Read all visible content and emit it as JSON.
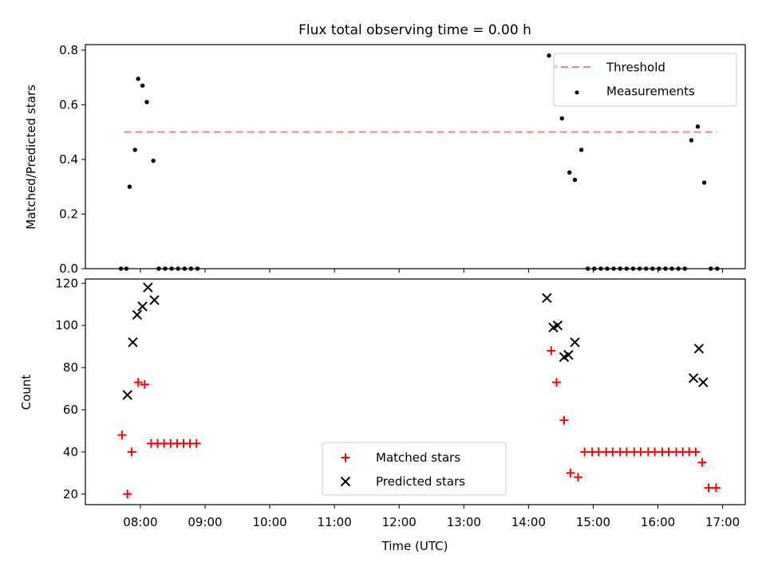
{
  "title": "Flux total observing time = 0.00 h",
  "colors": {
    "threshold": "#ff8080",
    "measurement": "#000000",
    "matched": "#ff0000",
    "predicted": "#000000"
  },
  "chart_data": [
    {
      "type": "scatter",
      "ylabel": "Matched/Predicted stars",
      "ylim": [
        0,
        0.82
      ],
      "xlim": [
        "07:09",
        "17:21"
      ],
      "yticks": [
        0.0,
        0.2,
        0.4,
        0.6,
        0.8
      ],
      "ytick_labels": [
        "0.0",
        "0.2",
        "0.4",
        "0.6",
        "0.8"
      ],
      "legend": {
        "position": "top-right",
        "threshold_label": "Threshold",
        "measurements_label": "Measurements"
      },
      "threshold": {
        "value": 0.5,
        "x": [
          "07:45",
          "16:55"
        ]
      },
      "series": [
        {
          "name": "Measurements",
          "x": [
            "07:42",
            "07:47",
            "07:50",
            "07:55",
            "07:58",
            "08:02",
            "08:06",
            "08:12",
            "08:17",
            "08:23",
            "08:29",
            "08:35",
            "08:41",
            "08:47",
            "08:53",
            "14:19",
            "14:25",
            "14:31",
            "14:38",
            "14:43",
            "14:49",
            "14:55",
            "15:01",
            "15:07",
            "15:13",
            "15:19",
            "15:25",
            "15:31",
            "15:37",
            "15:43",
            "15:49",
            "15:55",
            "16:01",
            "16:07",
            "16:13",
            "16:19",
            "16:25",
            "16:31",
            "16:37",
            "16:43",
            "16:49",
            "16:55"
          ],
          "values": [
            0,
            0,
            0.3,
            0.435,
            0.695,
            0.67,
            0.61,
            0.395,
            0,
            0,
            0,
            0,
            0,
            0,
            0,
            0.78,
            0.74,
            0.55,
            0.352,
            0.325,
            0.435,
            0,
            0,
            0,
            0,
            0,
            0,
            0,
            0,
            0,
            0,
            0,
            0,
            0,
            0,
            0,
            0,
            0.47,
            0.52,
            0.315,
            0,
            0
          ]
        }
      ]
    },
    {
      "type": "scatter",
      "xlabel": "Time (UTC)",
      "ylabel": "Count",
      "ylim": [
        15,
        122
      ],
      "xlim": [
        "07:09",
        "17:21"
      ],
      "yticks": [
        20,
        40,
        60,
        80,
        100,
        120
      ],
      "ytick_labels": [
        "20",
        "40",
        "60",
        "80",
        "100",
        "120"
      ],
      "xticks": [
        "08:00",
        "09:00",
        "10:00",
        "11:00",
        "12:00",
        "13:00",
        "14:00",
        "15:00",
        "16:00",
        "17:00"
      ],
      "legend": {
        "position": "bottom-center"
      },
      "series": [
        {
          "name": "Matched stars",
          "x": [
            "07:43",
            "07:48",
            "07:52",
            "07:58",
            "08:04",
            "08:10",
            "08:16",
            "08:22",
            "08:28",
            "08:34",
            "08:40",
            "08:46",
            "08:52",
            "14:21",
            "14:26",
            "14:33",
            "14:39",
            "14:46",
            "14:52",
            "14:59",
            "15:05",
            "15:12",
            "15:18",
            "15:25",
            "15:31",
            "15:38",
            "15:44",
            "15:51",
            "15:57",
            "16:04",
            "16:10",
            "16:17",
            "16:23",
            "16:29",
            "16:35",
            "16:41",
            "16:47",
            "16:54"
          ],
          "values": [
            48,
            20,
            40,
            73,
            72,
            44,
            44,
            44,
            44,
            44,
            44,
            44,
            44,
            88,
            73,
            55,
            30,
            28,
            40,
            40,
            40,
            40,
            40,
            40,
            40,
            40,
            40,
            40,
            40,
            40,
            40,
            40,
            40,
            40,
            40,
            35,
            23,
            23
          ]
        },
        {
          "name": "Predicted stars",
          "x": [
            "07:48",
            "07:53",
            "07:57",
            "08:02",
            "08:07",
            "08:13",
            "14:17",
            "14:23",
            "14:27",
            "14:33",
            "14:37",
            "14:43",
            "16:33",
            "16:38",
            "16:42"
          ],
          "values": [
            67,
            92,
            105,
            109,
            118,
            112,
            113,
            99,
            100,
            85,
            86,
            92,
            75,
            89,
            73
          ]
        }
      ]
    }
  ]
}
